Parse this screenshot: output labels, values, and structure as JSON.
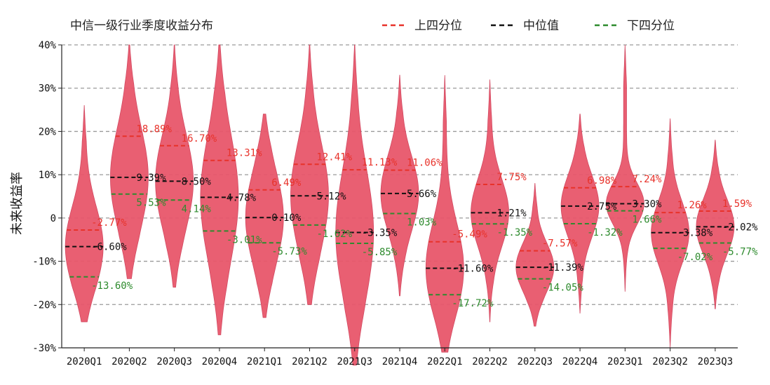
{
  "chart_data": {
    "type": "violin",
    "title": "中信一级行业季度收益分布",
    "ylabel": "未来收益率",
    "xlabel": "",
    "ylim": [
      -30,
      40
    ],
    "yticks": [
      -30,
      -20,
      -10,
      0,
      10,
      20,
      30,
      40
    ],
    "ytick_labels": [
      "-30%",
      "-20%",
      "-10%",
      "0",
      "10%",
      "20%",
      "30%",
      "40%"
    ],
    "grid": true,
    "legend_position": "top-right",
    "legend": [
      {
        "key": "q3",
        "label": "上四分位",
        "color": "#e8322a"
      },
      {
        "key": "median",
        "label": "中位值",
        "color": "#111111"
      },
      {
        "key": "q1",
        "label": "下四分位",
        "color": "#2e8b2e"
      }
    ],
    "violin_color": "#e8576b",
    "categories": [
      "2020Q1",
      "2020Q2",
      "2020Q3",
      "2020Q4",
      "2021Q1",
      "2021Q2",
      "2021Q3",
      "2021Q4",
      "2022Q1",
      "2022Q2",
      "2022Q3",
      "2022Q4",
      "2023Q1",
      "2023Q2",
      "2023Q3"
    ],
    "upper_quartile": [
      -2.77,
      18.89,
      16.7,
      13.31,
      6.49,
      12.41,
      11.13,
      11.06,
      -5.49,
      7.75,
      -7.57,
      6.98,
      7.24,
      1.26,
      1.59
    ],
    "median": [
      -6.6,
      9.39,
      8.5,
      4.78,
      0.1,
      5.12,
      -3.35,
      5.66,
      -11.6,
      1.21,
      -11.39,
      2.75,
      3.3,
      -3.38,
      -2.02
    ],
    "lower_quartile": [
      -13.6,
      5.53,
      4.14,
      -3.01,
      -5.73,
      -1.62,
      -5.85,
      1.03,
      -17.72,
      -1.35,
      -14.05,
      -1.32,
      1.66,
      -7.02,
      -5.77
    ],
    "upper_labels": [
      "-2.77%",
      "18.89%",
      "16.70%",
      "13.31%",
      "6.49%",
      "12.41%",
      "11.13%",
      "11.06%",
      "-5.49%",
      "7.75%",
      "-7.57%",
      "6.98%",
      "7.24%",
      "1.26%",
      "1.59%"
    ],
    "median_labels": [
      "-6.60%",
      "9.39%",
      "8.50%",
      "4.78%",
      "0.10%",
      "5.12%",
      "-3.35%",
      "5.66%",
      "-11.60%",
      "1.21%",
      "-11.39%",
      "2.75%",
      "3.30%",
      "-3.38%",
      "-2.02%"
    ],
    "lower_labels": [
      "-13.60%",
      "5.53%",
      "4.14%",
      "-3.01%",
      "-5.73%",
      "-1.62%",
      "-5.85%",
      "1.03%",
      "-17.72%",
      "-1.35%",
      "-14.05%",
      "-1.32%",
      "1.66%",
      "-7.02%",
      "-5.77%"
    ],
    "min": [
      -24,
      -14,
      -16,
      -27,
      -23,
      -20,
      -34,
      -18,
      -31,
      -24,
      -25,
      -22,
      -17,
      -30,
      -21
    ],
    "max": [
      26,
      40,
      40,
      40,
      24,
      40,
      40,
      33,
      33,
      32,
      8,
      24,
      40,
      23,
      18
    ]
  }
}
